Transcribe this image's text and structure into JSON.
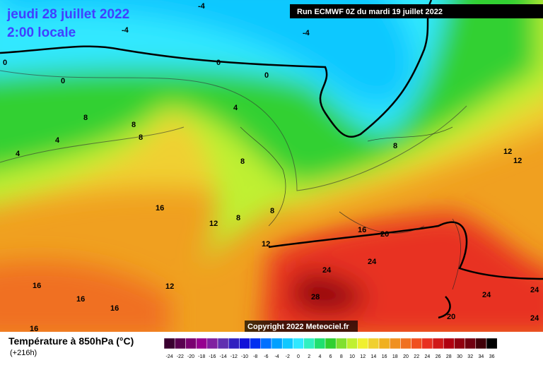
{
  "header": {
    "title": "jeudi 28 juillet 2022",
    "subtitle": "2:00 locale",
    "run": "Run ECMWF 0Z du mardi 19 juillet 2022"
  },
  "copyright": "Copyright 2022 Meteociel.fr",
  "footer": {
    "title": "Température à 850hPa (°C)",
    "subtitle": "(+216h)"
  },
  "contour_labels": [
    -4,
    -4,
    -4,
    0,
    0,
    0,
    0,
    4,
    4,
    4,
    8,
    8,
    8,
    8,
    8,
    8,
    8,
    12,
    12,
    12,
    12,
    12,
    16,
    16,
    16,
    16,
    16,
    16,
    20,
    20,
    24,
    24,
    24,
    24,
    24,
    28
  ],
  "legend": {
    "items": [
      {
        "label": -24,
        "color": "#3a0030"
      },
      {
        "label": -22,
        "color": "#5a0050"
      },
      {
        "label": -20,
        "color": "#7a0070"
      },
      {
        "label": -18,
        "color": "#960090"
      },
      {
        "label": -16,
        "color": "#8020a0"
      },
      {
        "label": -14,
        "color": "#6030b0"
      },
      {
        "label": -12,
        "color": "#3020c0"
      },
      {
        "label": -10,
        "color": "#1010d8"
      },
      {
        "label": -8,
        "color": "#0030f0"
      },
      {
        "label": -6,
        "color": "#0070ff"
      },
      {
        "label": -4,
        "color": "#00a0ff"
      },
      {
        "label": -2,
        "color": "#10c8ff"
      },
      {
        "label": 0,
        "color": "#30e8ff"
      },
      {
        "label": 2,
        "color": "#30f0c0"
      },
      {
        "label": 4,
        "color": "#20e070"
      },
      {
        "label": 6,
        "color": "#30d030"
      },
      {
        "label": 8,
        "color": "#80e030"
      },
      {
        "label": 10,
        "color": "#c0f030"
      },
      {
        "label": 12,
        "color": "#f0f030"
      },
      {
        "label": 14,
        "color": "#f0d030"
      },
      {
        "label": 16,
        "color": "#f0b020"
      },
      {
        "label": 18,
        "color": "#f09020"
      },
      {
        "label": 20,
        "color": "#f07020"
      },
      {
        "label": 22,
        "color": "#f05020"
      },
      {
        "label": 24,
        "color": "#e83020"
      },
      {
        "label": 26,
        "color": "#d01818"
      },
      {
        "label": 28,
        "color": "#b00010"
      },
      {
        "label": 30,
        "color": "#900010"
      },
      {
        "label": 32,
        "color": "#700010"
      },
      {
        "label": 34,
        "color": "#400008"
      },
      {
        "label": 36,
        "color": "#000000"
      }
    ]
  }
}
